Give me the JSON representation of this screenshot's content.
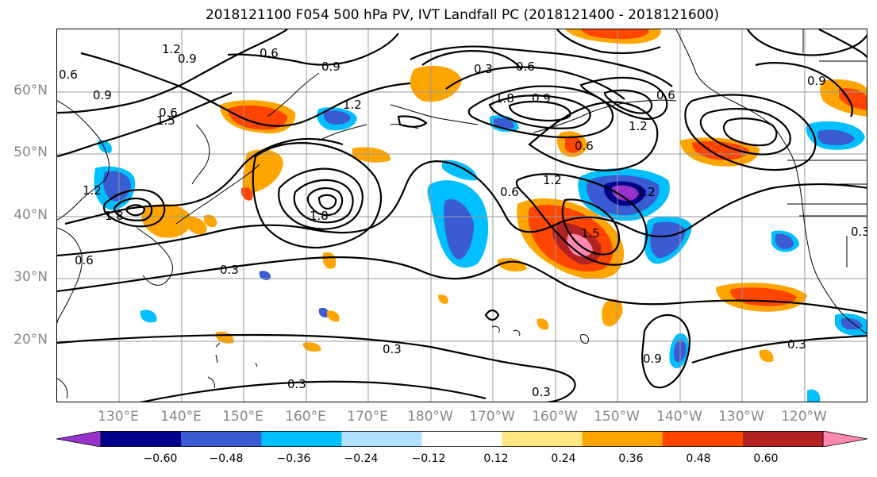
{
  "title": "2018121100 F054 500 hPa PV, IVT Landfall PC (2018121400 - 2018121600)",
  "lat_labels": [
    "60°N",
    "50°N",
    "40°N",
    "30°N",
    "20°N"
  ],
  "lon_labels": [
    "130°E",
    "140°E",
    "150°E",
    "160°E",
    "170°E",
    "180°W",
    "170°W",
    "160°W",
    "150°W",
    "140°W",
    "130°W",
    "120°W"
  ],
  "contour_labels": [
    "1.2",
    "0.9",
    "0.6",
    "0.6",
    "0.9",
    "0.6",
    "0.9",
    "1.2",
    "0.3",
    "0.6",
    "0.6",
    "1.2",
    "1.2",
    "0.6",
    "1.8",
    "1.5",
    "1.8",
    "0.6",
    "0.3",
    "0.3",
    "0.3",
    "0.3",
    "0.3",
    "0.9",
    "0.3",
    "1.2",
    "0.9",
    "1.8",
    "0.6",
    "1.5",
    "0.9",
    "1.2"
  ],
  "colorbar": {
    "ticks": [
      "−0.60",
      "−0.48",
      "−0.36",
      "−0.24",
      "−0.12",
      "0.12",
      "0.24",
      "0.36",
      "0.48",
      "0.60"
    ],
    "colors": [
      "#9932CC",
      "#00008B",
      "#3A5BD1",
      "#00BFFF",
      "#B0E0FF",
      "#FFFFFF",
      "#FFE680",
      "#FFA500",
      "#FF4500",
      "#B22222",
      "#FF88B0"
    ]
  }
}
